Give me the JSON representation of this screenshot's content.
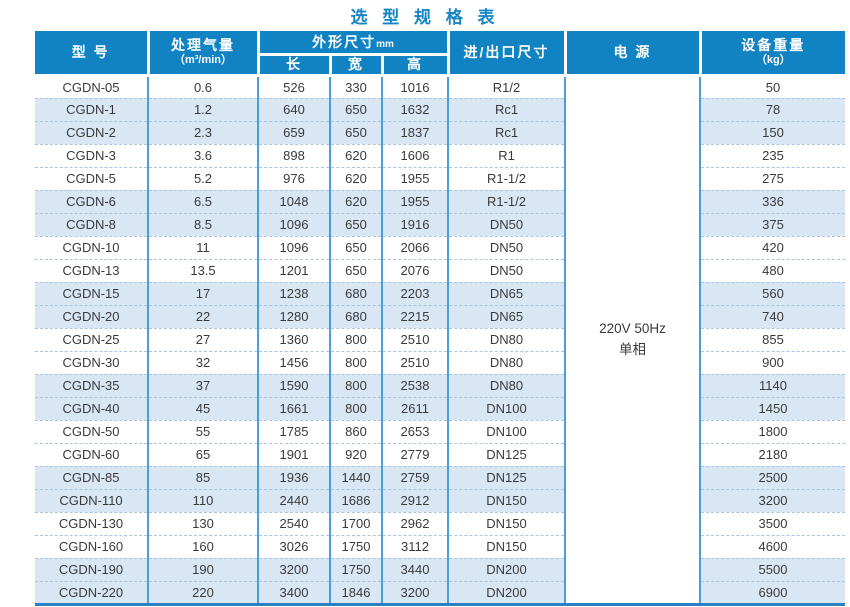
{
  "page": {
    "title": "选 型 规 格 表"
  },
  "colors": {
    "header_blue": "#1183c3",
    "title_blue": "#1685c6",
    "row_shaded": "#d9e7f5",
    "grid_solid": "#4b9fd5",
    "grid_dashed": "#a9c6dd",
    "bottom_border": "#2a80c0",
    "body_text": "#3a3a3a"
  },
  "table": {
    "headers": {
      "model": "型  号",
      "capacity": "处理气量",
      "capacity_unit": "（m³/min）",
      "dimensions": "外形尺寸",
      "dimensions_unit": "mm",
      "length": "长",
      "width": "宽",
      "height": "高",
      "inlet_outlet": "进/出口尺寸",
      "power": "电  源",
      "weight": "设备重量",
      "weight_unit": "（kg）"
    },
    "power_value": {
      "line1": "220V 50Hz",
      "line2": "单相"
    },
    "rows": [
      {
        "model": "CGDN-05",
        "capacity": "0.6",
        "length": "526",
        "width": "330",
        "height": "1016",
        "inlet": "R1/2",
        "weight": "50",
        "shaded": false
      },
      {
        "model": "CGDN-1",
        "capacity": "1.2",
        "length": "640",
        "width": "650",
        "height": "1632",
        "inlet": "Rc1",
        "weight": "78",
        "shaded": true
      },
      {
        "model": "CGDN-2",
        "capacity": "2.3",
        "length": "659",
        "width": "650",
        "height": "1837",
        "inlet": "Rc1",
        "weight": "150",
        "shaded": true
      },
      {
        "model": "CGDN-3",
        "capacity": "3.6",
        "length": "898",
        "width": "620",
        "height": "1606",
        "inlet": "R1",
        "weight": "235",
        "shaded": false
      },
      {
        "model": "CGDN-5",
        "capacity": "5.2",
        "length": "976",
        "width": "620",
        "height": "1955",
        "inlet": "R1-1/2",
        "weight": "275",
        "shaded": false
      },
      {
        "model": "CGDN-6",
        "capacity": "6.5",
        "length": "1048",
        "width": "620",
        "height": "1955",
        "inlet": "R1-1/2",
        "weight": "336",
        "shaded": true
      },
      {
        "model": "CGDN-8",
        "capacity": "8.5",
        "length": "1096",
        "width": "650",
        "height": "1916",
        "inlet": "DN50",
        "weight": "375",
        "shaded": true
      },
      {
        "model": "CGDN-10",
        "capacity": "11",
        "length": "1096",
        "width": "650",
        "height": "2066",
        "inlet": "DN50",
        "weight": "420",
        "shaded": false
      },
      {
        "model": "CGDN-13",
        "capacity": "13.5",
        "length": "1201",
        "width": "650",
        "height": "2076",
        "inlet": "DN50",
        "weight": "480",
        "shaded": false
      },
      {
        "model": "CGDN-15",
        "capacity": "17",
        "length": "1238",
        "width": "680",
        "height": "2203",
        "inlet": "DN65",
        "weight": "560",
        "shaded": true
      },
      {
        "model": "CGDN-20",
        "capacity": "22",
        "length": "1280",
        "width": "680",
        "height": "2215",
        "inlet": "DN65",
        "weight": "740",
        "shaded": true
      },
      {
        "model": "CGDN-25",
        "capacity": "27",
        "length": "1360",
        "width": "800",
        "height": "2510",
        "inlet": "DN80",
        "weight": "855",
        "shaded": false
      },
      {
        "model": "CGDN-30",
        "capacity": "32",
        "length": "1456",
        "width": "800",
        "height": "2510",
        "inlet": "DN80",
        "weight": "900",
        "shaded": false
      },
      {
        "model": "CGDN-35",
        "capacity": "37",
        "length": "1590",
        "width": "800",
        "height": "2538",
        "inlet": "DN80",
        "weight": "1140",
        "shaded": true
      },
      {
        "model": "CGDN-40",
        "capacity": "45",
        "length": "1661",
        "width": "800",
        "height": "2611",
        "inlet": "DN100",
        "weight": "1450",
        "shaded": true
      },
      {
        "model": "CGDN-50",
        "capacity": "55",
        "length": "1785",
        "width": "860",
        "height": "2653",
        "inlet": "DN100",
        "weight": "1800",
        "shaded": false
      },
      {
        "model": "CGDN-60",
        "capacity": "65",
        "length": "1901",
        "width": "920",
        "height": "2779",
        "inlet": "DN125",
        "weight": "2180",
        "shaded": false
      },
      {
        "model": "CGDN-85",
        "capacity": "85",
        "length": "1936",
        "width": "1440",
        "height": "2759",
        "inlet": "DN125",
        "weight": "2500",
        "shaded": true
      },
      {
        "model": "CGDN-110",
        "capacity": "110",
        "length": "2440",
        "width": "1686",
        "height": "2912",
        "inlet": "DN150",
        "weight": "3200",
        "shaded": true
      },
      {
        "model": "CGDN-130",
        "capacity": "130",
        "length": "2540",
        "width": "1700",
        "height": "2962",
        "inlet": "DN150",
        "weight": "3500",
        "shaded": false
      },
      {
        "model": "CGDN-160",
        "capacity": "160",
        "length": "3026",
        "width": "1750",
        "height": "3112",
        "inlet": "DN150",
        "weight": "4600",
        "shaded": false
      },
      {
        "model": "CGDN-190",
        "capacity": "190",
        "length": "3200",
        "width": "1750",
        "height": "3440",
        "inlet": "DN200",
        "weight": "5500",
        "shaded": true
      },
      {
        "model": "CGDN-220",
        "capacity": "220",
        "length": "3400",
        "width": "1846",
        "height": "3200",
        "inlet": "DN200",
        "weight": "6900",
        "shaded": true
      }
    ]
  }
}
